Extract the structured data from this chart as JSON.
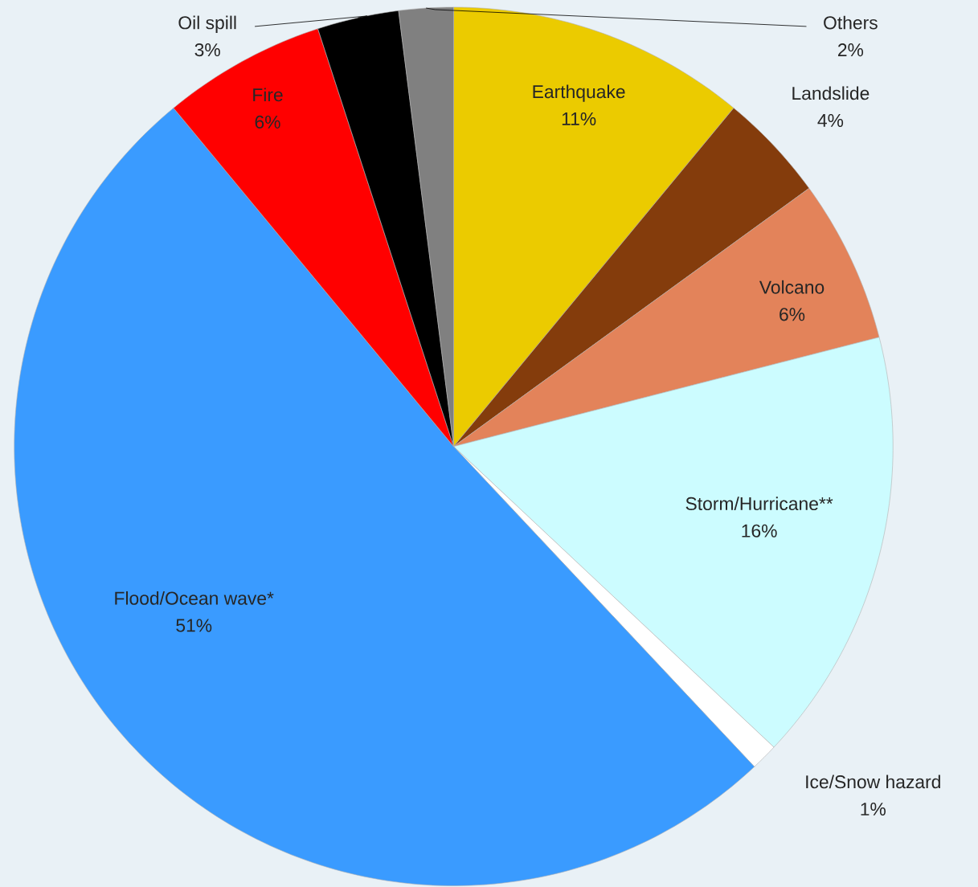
{
  "chart_data": {
    "type": "pie",
    "categories": [
      "Earthquake",
      "Landslide",
      "Volcano",
      "Storm/Hurricane**",
      "Ice/Snow hazard",
      "Flood/Ocean wave*",
      "Fire",
      "Oil spill",
      "Others"
    ],
    "values": [
      11,
      4,
      6,
      16,
      1,
      51,
      6,
      3,
      2
    ],
    "value_labels": [
      "11%",
      "4%",
      "6%",
      "16%",
      "1%",
      "51%",
      "6%",
      "3%",
      "2%"
    ],
    "colors": [
      "#ebcb00",
      "#843c0c",
      "#e3835a",
      "#ccfcff",
      "#ffffff",
      "#3a9bff",
      "#ff0000",
      "#000000",
      "#808080"
    ]
  }
}
